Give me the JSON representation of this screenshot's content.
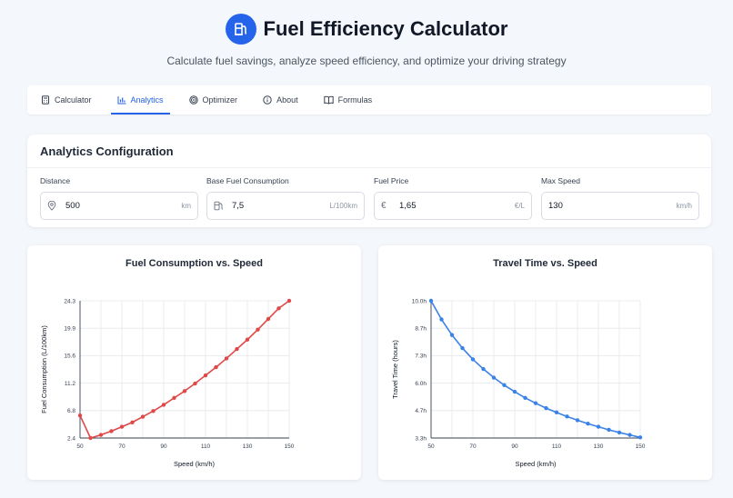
{
  "header": {
    "title": "Fuel Efficiency Calculator",
    "subtitle": "Calculate fuel savings, analyze speed efficiency, and optimize your driving strategy",
    "logo_icon": "fuel-pump-icon"
  },
  "tabs": [
    {
      "label": "Calculator",
      "icon": "calculator-icon",
      "active": false
    },
    {
      "label": "Analytics",
      "icon": "bar-chart-icon",
      "active": true
    },
    {
      "label": "Optimizer",
      "icon": "target-icon",
      "active": false
    },
    {
      "label": "About",
      "icon": "info-icon",
      "active": false
    },
    {
      "label": "Formulas",
      "icon": "book-icon",
      "active": false
    }
  ],
  "config": {
    "title": "Analytics Configuration",
    "fields": [
      {
        "label": "Distance",
        "value": "500",
        "unit": "km",
        "icon": "map-pin-icon"
      },
      {
        "label": "Base Fuel Consumption",
        "value": "7,5",
        "unit": "L/100km",
        "icon": "fuel-icon"
      },
      {
        "label": "Fuel Price",
        "value": "1,65",
        "unit": "€/L",
        "icon": "euro-icon"
      },
      {
        "label": "Max Speed",
        "value": "130",
        "unit": "km/h",
        "icon": ""
      }
    ]
  },
  "colors": {
    "accent": "#2563eb",
    "consumption_line": "#e04848",
    "time_line": "#3b82e6"
  },
  "chart_data": [
    {
      "type": "line",
      "title": "Fuel Consumption vs. Speed",
      "xlabel": "Speed (km/h)",
      "ylabel": "Fuel Consumption (L/100km)",
      "x": [
        50,
        55,
        60,
        65,
        70,
        75,
        80,
        85,
        90,
        95,
        100,
        105,
        110,
        115,
        120,
        125,
        130,
        135,
        140,
        145,
        150
      ],
      "y": [
        6.0,
        2.4,
        2.9,
        3.5,
        4.2,
        4.9,
        5.8,
        6.7,
        7.7,
        8.8,
        9.9,
        11.1,
        12.4,
        13.7,
        15.1,
        16.6,
        18.1,
        19.7,
        21.4,
        23.1,
        24.3
      ],
      "xticks": [
        "50",
        "70",
        "90",
        "110",
        "130",
        "150"
      ],
      "yticks": [
        "2.4",
        "6.8",
        "11.2",
        "15.6",
        "19.9",
        "24.3"
      ],
      "xlim": [
        50,
        150
      ],
      "ylim": [
        2.4,
        24.3
      ],
      "grid": true
    },
    {
      "type": "line",
      "title": "Travel Time vs. Speed",
      "xlabel": "Speed (km/h)",
      "ylabel": "Travel Time (hours)",
      "x": [
        50,
        55,
        60,
        65,
        70,
        75,
        80,
        85,
        90,
        95,
        100,
        105,
        110,
        115,
        120,
        125,
        130,
        135,
        140,
        145,
        150
      ],
      "y": [
        10.0,
        9.09,
        8.33,
        7.69,
        7.14,
        6.67,
        6.25,
        5.88,
        5.56,
        5.26,
        5.0,
        4.76,
        4.55,
        4.35,
        4.17,
        4.0,
        3.85,
        3.7,
        3.57,
        3.45,
        3.33
      ],
      "xticks": [
        "50",
        "70",
        "90",
        "110",
        "130",
        "150"
      ],
      "yticks": [
        "3.3h",
        "4.7h",
        "6.0h",
        "7.3h",
        "8.7h",
        "10.0h"
      ],
      "xlim": [
        50,
        150
      ],
      "ylim": [
        3.3,
        10.0
      ],
      "grid": true
    }
  ]
}
